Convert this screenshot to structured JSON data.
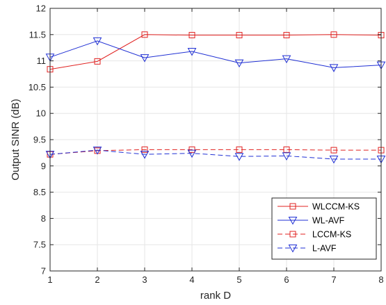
{
  "chart_data": {
    "type": "line",
    "title": "",
    "xlabel": "rank D",
    "ylabel": "Output SINR (dB)",
    "x": [
      1,
      2,
      3,
      4,
      5,
      6,
      7,
      8
    ],
    "xlim": [
      1,
      8
    ],
    "ylim": [
      7,
      12
    ],
    "xticks": [
      "1",
      "2",
      "3",
      "4",
      "5",
      "6",
      "7",
      "8"
    ],
    "yticks": [
      "7",
      "7.5",
      "8",
      "8.5",
      "9",
      "9.5",
      "10",
      "10.5",
      "11",
      "11.5",
      "12"
    ],
    "grid": true,
    "legend_position": "bottom-right",
    "series": [
      {
        "name": "WLCCM-KS",
        "values": [
          10.84,
          10.99,
          11.5,
          11.49,
          11.49,
          11.49,
          11.5,
          11.49
        ],
        "color": "#e0201f",
        "line": "solid",
        "marker": "square"
      },
      {
        "name": "WL-AVF",
        "values": [
          11.07,
          11.38,
          11.06,
          11.18,
          10.96,
          11.04,
          10.87,
          10.92
        ],
        "color": "#1f2fd4",
        "line": "solid",
        "marker": "triangle-down"
      },
      {
        "name": "LCCM-KS",
        "values": [
          9.22,
          9.29,
          9.31,
          9.31,
          9.31,
          9.31,
          9.3,
          9.3
        ],
        "color": "#e0201f",
        "line": "dashed",
        "marker": "square"
      },
      {
        "name": "L-AVF",
        "values": [
          9.22,
          9.3,
          9.22,
          9.24,
          9.18,
          9.19,
          9.13,
          9.13
        ],
        "color": "#1f2fd4",
        "line": "dashed",
        "marker": "triangle-down"
      }
    ]
  }
}
